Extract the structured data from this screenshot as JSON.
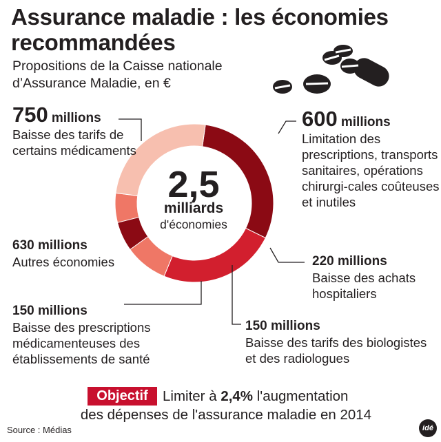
{
  "title": "Assurance maladie : les économies recommandées",
  "subtitle": "Propositions de la Caisse nationale d’Assurance Maladie, en €",
  "center": {
    "big": "2,5",
    "mid": "milliards",
    "small": "d'économies"
  },
  "callouts": {
    "tarifs_medicaments": {
      "num": "750",
      "unit": "millions",
      "desc": "Baisse des tarifs de certains médicaments"
    },
    "limitation_prescriptions": {
      "num": "600",
      "unit": "millions",
      "desc": "Limitation des prescriptions, transports sanitaires, opérations chirurgi-cales coûteuses et inutiles"
    },
    "achats_hospitaliers": {
      "amount": "220 millions",
      "desc": "Baisse des achats hospitaliers"
    },
    "biologistes_radiologues": {
      "amount": "150 millions",
      "desc": "Baisse des tarifs des biologistes et des radiologues"
    },
    "prescriptions_etablissements": {
      "amount": "150 millions",
      "desc": "Baisse des prescriptions médicamenteuses des établissements de santé"
    },
    "autres": {
      "amount": "630 millions",
      "desc": "Autres économies"
    }
  },
  "objective": {
    "badge": "Objectif",
    "line1_pre": "Limiter à ",
    "line1_bold": "2,4%",
    "line1_post": " l'augmentation",
    "line2": "des dépenses de l'assurance maladie en 2014"
  },
  "source": "Source : Médias",
  "logo": "idé",
  "colors": {
    "dark_red": "#8b0a14",
    "red": "#d21f2e",
    "salmon": "#ef7766",
    "light_salmon": "#f7bfaf",
    "text": "#231f20"
  },
  "icons": [
    "pills-icon"
  ],
  "chart_data": {
    "type": "pie",
    "donut": true,
    "unit": "millions €",
    "total_label": "2,5 milliards",
    "slices": [
      {
        "label": "Baisse des tarifs de certains médicaments",
        "value": 750,
        "color": "#8b0a14"
      },
      {
        "label": "Limitation des prescriptions, transports sanitaires, opérations chirurgicales coûteuses et inutiles",
        "value": 600,
        "color": "#d21f2e"
      },
      {
        "label": "Baisse des achats hospitaliers",
        "value": 220,
        "color": "#ef7766"
      },
      {
        "label": "Baisse des tarifs des biologistes et des radiologues",
        "value": 150,
        "color": "#8b0a14"
      },
      {
        "label": "Baisse des prescriptions médicamenteuses des établissements de santé",
        "value": 150,
        "color": "#ef7766"
      },
      {
        "label": "Autres économies",
        "value": 630,
        "color": "#f7bfaf"
      }
    ]
  }
}
